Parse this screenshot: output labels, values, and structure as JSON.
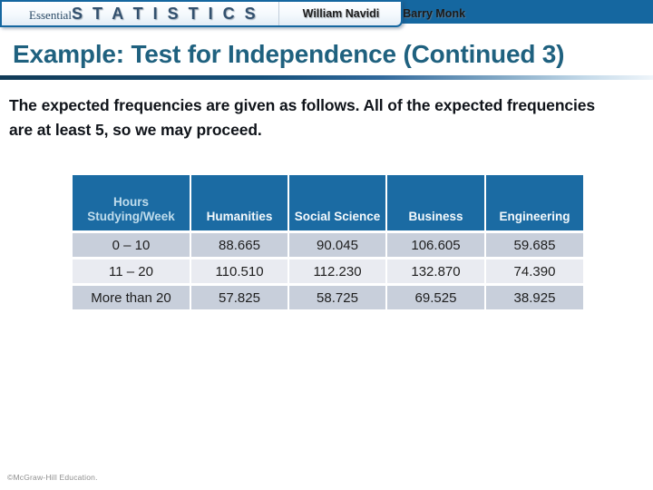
{
  "banner": {
    "logo": {
      "essential": "Essential",
      "statistics": "S T A T I S T I C S"
    },
    "authors": [
      "William Navidi",
      "Barry Monk"
    ]
  },
  "title": "Example: Test for Independence (Continued 3)",
  "body_paragraph": "The expected frequencies are given as follows. All of the expected frequencies are at least 5, so we may proceed.",
  "table": {
    "headers": [
      "Hours Studying/Week",
      "Humanities",
      "Social Science",
      "Business",
      "Engineering"
    ],
    "rows": [
      {
        "label": "0 – 10",
        "values": [
          "88.665",
          "90.045",
          "106.605",
          "59.685"
        ]
      },
      {
        "label": "11 – 20",
        "values": [
          "110.510",
          "112.230",
          "132.870",
          "74.390"
        ]
      },
      {
        "label": "More than 20",
        "values": [
          "57.825",
          "58.725",
          "69.525",
          "38.925"
        ]
      }
    ]
  },
  "footer": "©McGraw-Hill Education.",
  "colors": {
    "banner_blue": "#1567A0",
    "title_text": "#1F617F",
    "table_header_bg": "#1B6BA3",
    "table_header_text": "#F4F9FC",
    "table_first_header_text": "#BFDCEC",
    "row_dark": "#C8CFDB",
    "row_light": "#E9EBF1",
    "divider_gradient_start": "#123B57",
    "divider_gradient_end": "#EFF5FA"
  }
}
